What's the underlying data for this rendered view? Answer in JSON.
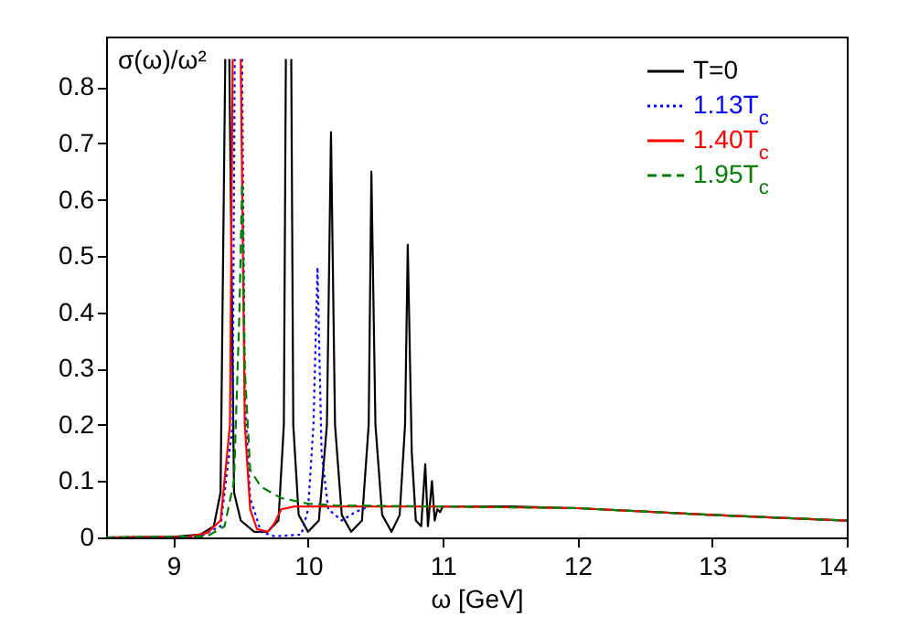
{
  "chart_data": {
    "type": "line",
    "xlabel": "ω [GeV]",
    "ylabel": "σ(ω)/ω²",
    "xlim": [
      8.5,
      14
    ],
    "xticks": [
      9,
      10,
      11,
      12,
      13,
      14
    ],
    "ylim": [
      0,
      0.89
    ],
    "yticks": [
      0,
      0.1,
      0.2,
      0.3,
      0.4,
      0.5,
      0.6,
      0.7,
      0.8
    ],
    "grid": false,
    "legend": "top right",
    "series": [
      {
        "name": "T=0",
        "color": "#000000",
        "line_style": "solid",
        "x": [
          8.5,
          9.0,
          9.2,
          9.3,
          9.35,
          9.385,
          9.4,
          9.415,
          9.45,
          9.5,
          9.6,
          9.7,
          9.78,
          9.82,
          9.835,
          9.855,
          9.875,
          9.89,
          9.93,
          10.0,
          10.08,
          10.14,
          10.17,
          10.2,
          10.25,
          10.32,
          10.4,
          10.45,
          10.47,
          10.5,
          10.55,
          10.62,
          10.68,
          10.72,
          10.74,
          10.77,
          10.8,
          10.84,
          10.87,
          10.89,
          10.92,
          10.94,
          10.96,
          10.98,
          11.0,
          11.5,
          12.0,
          13.0,
          14.0
        ],
        "values": [
          0,
          0.001,
          0.005,
          0.02,
          0.08,
          0.85,
          null,
          0.85,
          0.08,
          0.03,
          0.01,
          0.01,
          0.03,
          0.2,
          0.85,
          null,
          0.85,
          0.2,
          0.04,
          0.01,
          0.03,
          0.2,
          0.72,
          0.2,
          0.04,
          0.01,
          0.03,
          0.2,
          0.65,
          0.2,
          0.04,
          0.01,
          0.04,
          0.2,
          0.52,
          0.15,
          0.03,
          0.02,
          0.13,
          0.02,
          0.1,
          0.03,
          0.05,
          0.045,
          0.055,
          0.055,
          0.052,
          0.04,
          0.03
        ]
      },
      {
        "name": "1.13T$_{c}$",
        "color": "#0000ff",
        "line_style": "dotted",
        "x": [
          8.5,
          9.2,
          9.35,
          9.44,
          9.455,
          9.485,
          9.51,
          9.53,
          9.57,
          9.65,
          9.75,
          9.95,
          10.0,
          10.04,
          10.07,
          10.1,
          10.15,
          10.25,
          10.35,
          10.45
        ],
        "values": [
          0,
          0.002,
          0.02,
          0.2,
          0.85,
          null,
          0.85,
          0.25,
          0.07,
          0.01,
          0.002,
          0.005,
          0.05,
          0.2,
          0.48,
          0.15,
          0.05,
          0.03,
          0.045,
          0.055
        ]
      },
      {
        "name": "1.40T$_{c}$",
        "color": "#ff0000",
        "line_style": "solid",
        "x": [
          8.5,
          9.1,
          9.25,
          9.35,
          9.42,
          9.44,
          9.475,
          9.5,
          9.53,
          9.57,
          9.62,
          9.7,
          9.75,
          9.8,
          9.9,
          11.0,
          12.0,
          13.0,
          14.0
        ],
        "values": [
          0,
          0.001,
          0.008,
          0.03,
          0.2,
          0.85,
          null,
          0.85,
          0.2,
          0.05,
          0.015,
          0.01,
          0.025,
          0.05,
          0.055,
          0.055,
          0.052,
          0.04,
          0.03
        ]
      },
      {
        "name": "1.95T$_{c}$",
        "color": "#008000",
        "line_style": "dashed",
        "x": [
          8.5,
          9.25,
          9.38,
          9.45,
          9.49,
          9.51,
          9.53,
          9.57,
          9.65,
          9.8,
          10.0,
          10.2,
          11.0,
          12.0,
          13.0,
          14.0
        ],
        "values": [
          0,
          0.002,
          0.02,
          0.1,
          0.4,
          0.63,
          0.3,
          0.12,
          0.09,
          0.07,
          0.06,
          0.057,
          0.055,
          0.052,
          0.04,
          0.03
        ]
      }
    ]
  }
}
